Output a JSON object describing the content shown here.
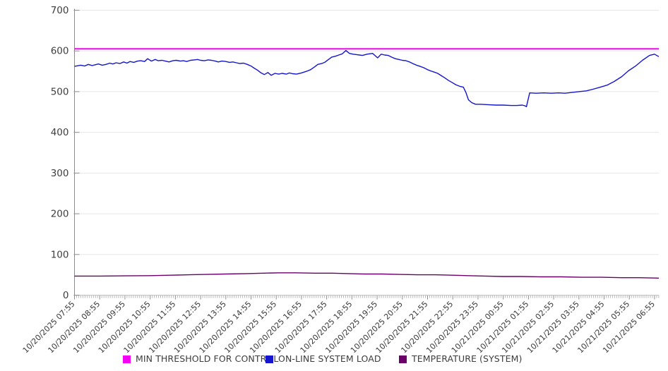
{
  "chart_data": {
    "type": "line",
    "title": "",
    "xlabel": "",
    "ylabel": "",
    "ylim": [
      0,
      700
    ],
    "y_ticks": [
      0,
      100,
      200,
      300,
      400,
      500,
      600,
      700
    ],
    "grid": true,
    "legend_position": "bottom",
    "x_axis": {
      "hours_span": 23.17,
      "minor_ticks_per_hour": 12,
      "tick_labels": [
        "10/20/2025 07:55",
        "10/20/2025 08:55",
        "10/20/2025 09:55",
        "10/20/2025 10:55",
        "10/20/2025 11:55",
        "10/20/2025 12:55",
        "10/20/2025 13:55",
        "10/20/2025 14:55",
        "10/20/2025 15:55",
        "10/20/2025 16:55",
        "10/20/2025 17:55",
        "10/20/2025 18:55",
        "10/20/2025 19:55",
        "10/20/2025 20:55",
        "10/20/2025 21:55",
        "10/20/2025 22:55",
        "10/20/2025 23:55",
        "10/21/2025 00:55",
        "10/21/2025 01:55",
        "10/21/2025 02:55",
        "10/21/2025 03:55",
        "10/21/2025 04:55",
        "10/21/2025 05:55",
        "10/21/2025 06:55"
      ]
    },
    "series": [
      {
        "name": "MIN THRESHOLD FOR CONTROL",
        "color": "#F503F5",
        "stroke_width": 2,
        "points": [
          [
            0,
            605
          ],
          [
            23.17,
            605
          ]
        ]
      },
      {
        "name": "ON-LINE SYSTEM LOAD",
        "color": "#1515CD",
        "stroke_width": 1.4,
        "points": [
          [
            0,
            562
          ],
          [
            0.25,
            565
          ],
          [
            0.4,
            563
          ],
          [
            0.55,
            567
          ],
          [
            0.7,
            564
          ],
          [
            0.82,
            566
          ],
          [
            0.95,
            568
          ],
          [
            1.1,
            565
          ],
          [
            1.25,
            567
          ],
          [
            1.4,
            570
          ],
          [
            1.52,
            568
          ],
          [
            1.65,
            571
          ],
          [
            1.8,
            569
          ],
          [
            1.95,
            573
          ],
          [
            2.08,
            570
          ],
          [
            2.2,
            574
          ],
          [
            2.35,
            572
          ],
          [
            2.5,
            575
          ],
          [
            2.63,
            576
          ],
          [
            2.78,
            574
          ],
          [
            2.9,
            581
          ],
          [
            3.05,
            575
          ],
          [
            3.2,
            579
          ],
          [
            3.32,
            576
          ],
          [
            3.47,
            577
          ],
          [
            3.6,
            575
          ],
          [
            3.75,
            573
          ],
          [
            3.9,
            576
          ],
          [
            4.03,
            577
          ],
          [
            4.2,
            575
          ],
          [
            4.32,
            576
          ],
          [
            4.45,
            574
          ],
          [
            4.6,
            577
          ],
          [
            4.75,
            578
          ],
          [
            4.88,
            579
          ],
          [
            5.0,
            577
          ],
          [
            5.15,
            576
          ],
          [
            5.3,
            578
          ],
          [
            5.43,
            577
          ],
          [
            5.58,
            575
          ],
          [
            5.7,
            573
          ],
          [
            5.85,
            575
          ],
          [
            6.0,
            574
          ],
          [
            6.15,
            572
          ],
          [
            6.28,
            573
          ],
          [
            6.42,
            571
          ],
          [
            6.55,
            569
          ],
          [
            6.7,
            570
          ],
          [
            6.85,
            567
          ],
          [
            7.0,
            563
          ],
          [
            7.12,
            558
          ],
          [
            7.25,
            553
          ],
          [
            7.4,
            546
          ],
          [
            7.53,
            542
          ],
          [
            7.67,
            547
          ],
          [
            7.8,
            540
          ],
          [
            7.95,
            545
          ],
          [
            8.1,
            543
          ],
          [
            8.23,
            545
          ],
          [
            8.4,
            543
          ],
          [
            8.52,
            546
          ],
          [
            8.65,
            544
          ],
          [
            8.8,
            543
          ],
          [
            9.0,
            546
          ],
          [
            9.2,
            550
          ],
          [
            9.36,
            554
          ],
          [
            9.5,
            560
          ],
          [
            9.65,
            567
          ],
          [
            9.8,
            569
          ],
          [
            9.92,
            572
          ],
          [
            10.05,
            578
          ],
          [
            10.2,
            585
          ],
          [
            10.35,
            587
          ],
          [
            10.48,
            590
          ],
          [
            10.62,
            593
          ],
          [
            10.76,
            601
          ],
          [
            10.9,
            594
          ],
          [
            11.05,
            592
          ],
          [
            11.18,
            591
          ],
          [
            11.3,
            590
          ],
          [
            11.42,
            589
          ],
          [
            11.6,
            592
          ],
          [
            11.82,
            594
          ],
          [
            12.02,
            583
          ],
          [
            12.16,
            592
          ],
          [
            12.3,
            590
          ],
          [
            12.44,
            589
          ],
          [
            12.6,
            584
          ],
          [
            12.72,
            581
          ],
          [
            12.86,
            579
          ],
          [
            13.0,
            577
          ],
          [
            13.15,
            576
          ],
          [
            13.28,
            573
          ],
          [
            13.45,
            568
          ],
          [
            13.56,
            565
          ],
          [
            13.7,
            562
          ],
          [
            13.84,
            559
          ],
          [
            14.0,
            554
          ],
          [
            14.12,
            551
          ],
          [
            14.26,
            548
          ],
          [
            14.4,
            545
          ],
          [
            14.55,
            539
          ],
          [
            14.68,
            534
          ],
          [
            14.82,
            528
          ],
          [
            14.96,
            523
          ],
          [
            15.12,
            517
          ],
          [
            15.28,
            513
          ],
          [
            15.42,
            511
          ],
          [
            15.52,
            498
          ],
          [
            15.62,
            480
          ],
          [
            15.75,
            473
          ],
          [
            15.9,
            469
          ],
          [
            16.1,
            469
          ],
          [
            16.4,
            468
          ],
          [
            16.7,
            467
          ],
          [
            17.0,
            467
          ],
          [
            17.3,
            466
          ],
          [
            17.55,
            466
          ],
          [
            17.75,
            467
          ],
          [
            17.87,
            465
          ],
          [
            17.92,
            463
          ],
          [
            18.05,
            497
          ],
          [
            18.3,
            496
          ],
          [
            18.6,
            497
          ],
          [
            18.9,
            496
          ],
          [
            19.2,
            497
          ],
          [
            19.45,
            496
          ],
          [
            19.72,
            498
          ],
          [
            20.0,
            500
          ],
          [
            20.3,
            502
          ],
          [
            20.56,
            506
          ],
          [
            20.85,
            511
          ],
          [
            21.12,
            516
          ],
          [
            21.4,
            525
          ],
          [
            21.7,
            537
          ],
          [
            21.96,
            551
          ],
          [
            22.25,
            563
          ],
          [
            22.52,
            577
          ],
          [
            22.8,
            589
          ],
          [
            23.0,
            592
          ],
          [
            23.17,
            586
          ]
        ]
      },
      {
        "name": "TEMPERATURE (SYSTEM)",
        "color": "#6B006B",
        "stroke_width": 1.4,
        "points": [
          [
            0,
            47
          ],
          [
            1,
            47
          ],
          [
            2,
            47.5
          ],
          [
            3,
            48
          ],
          [
            3.8,
            49
          ],
          [
            4.5,
            50
          ],
          [
            5.2,
            51
          ],
          [
            6.0,
            52
          ],
          [
            6.8,
            53
          ],
          [
            7.5,
            54
          ],
          [
            8.1,
            55
          ],
          [
            8.8,
            55
          ],
          [
            9.5,
            54
          ],
          [
            10.2,
            54
          ],
          [
            10.9,
            53
          ],
          [
            11.5,
            52
          ],
          [
            12.2,
            52
          ],
          [
            12.9,
            51
          ],
          [
            13.6,
            50
          ],
          [
            14.3,
            50
          ],
          [
            15.0,
            49
          ],
          [
            15.6,
            48
          ],
          [
            16.3,
            47
          ],
          [
            17.0,
            46
          ],
          [
            17.7,
            46
          ],
          [
            18.5,
            45
          ],
          [
            19.3,
            45
          ],
          [
            20.1,
            44
          ],
          [
            20.9,
            44
          ],
          [
            21.7,
            43
          ],
          [
            22.4,
            43
          ],
          [
            23.17,
            42
          ]
        ]
      }
    ]
  }
}
